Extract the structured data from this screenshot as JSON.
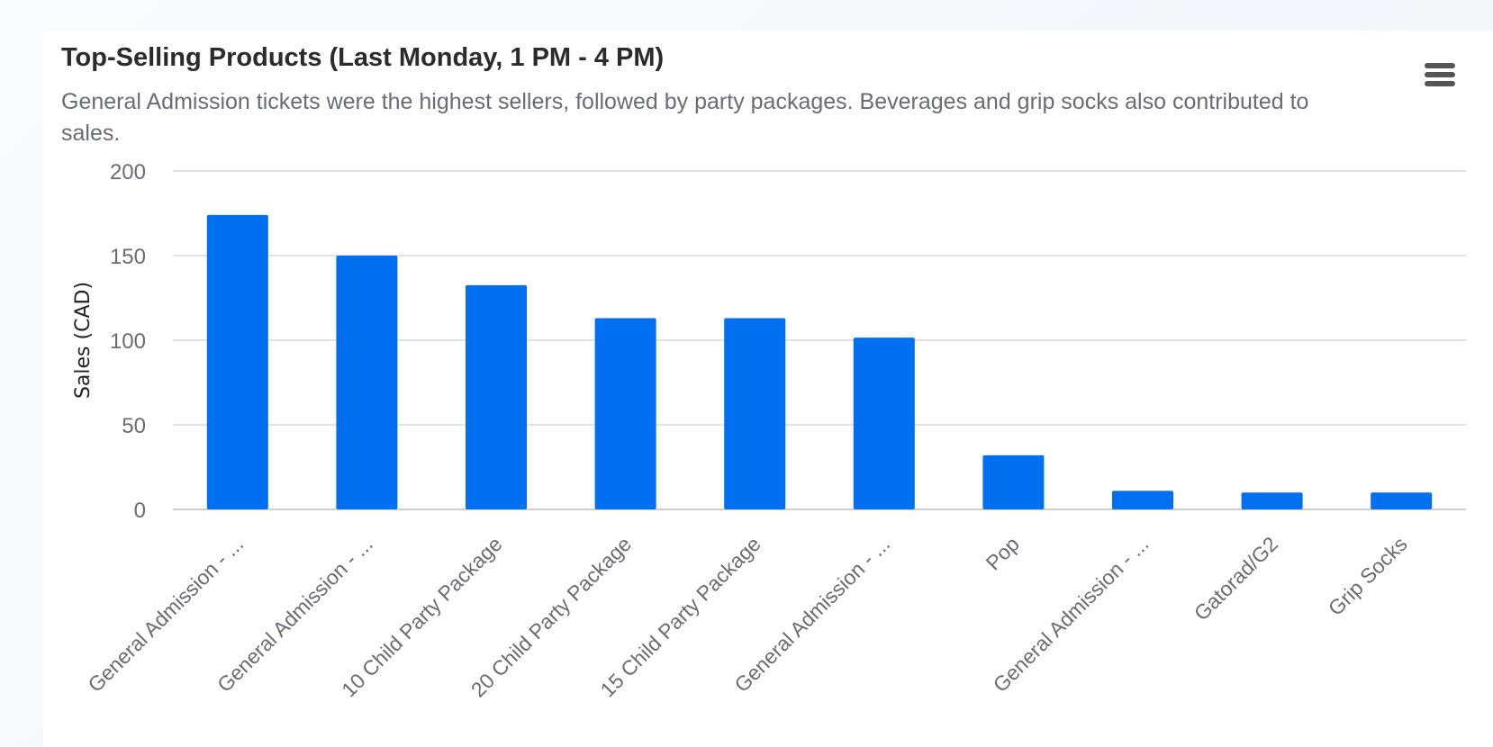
{
  "chart_data": {
    "type": "bar",
    "title": "Top-Selling Products (Last Monday, 1 PM - 4 PM)",
    "subtitle": "General Admission tickets were the highest sellers, followed by party packages. Beverages and grip socks also contributed to sales.",
    "xlabel": "",
    "ylabel": "Sales (CAD)",
    "ylim": [
      0,
      200
    ],
    "yticks": [
      0,
      50,
      100,
      150,
      200
    ],
    "grid": true,
    "legend": "none",
    "bar_color": "#0070f0",
    "categories": [
      "General Admission - ...",
      "General Admission - ...",
      "10 Child Party Package",
      "20 Child Party Package",
      "15 Child Party Package",
      "General Admission - ...",
      "Pop",
      "General Admission - ...",
      "Gatorad/G2",
      "Grip Socks"
    ],
    "values": [
      174,
      150,
      132.5,
      113,
      113,
      101.5,
      32,
      11,
      10,
      10
    ]
  },
  "menu_icon": "hamburger-menu-icon"
}
